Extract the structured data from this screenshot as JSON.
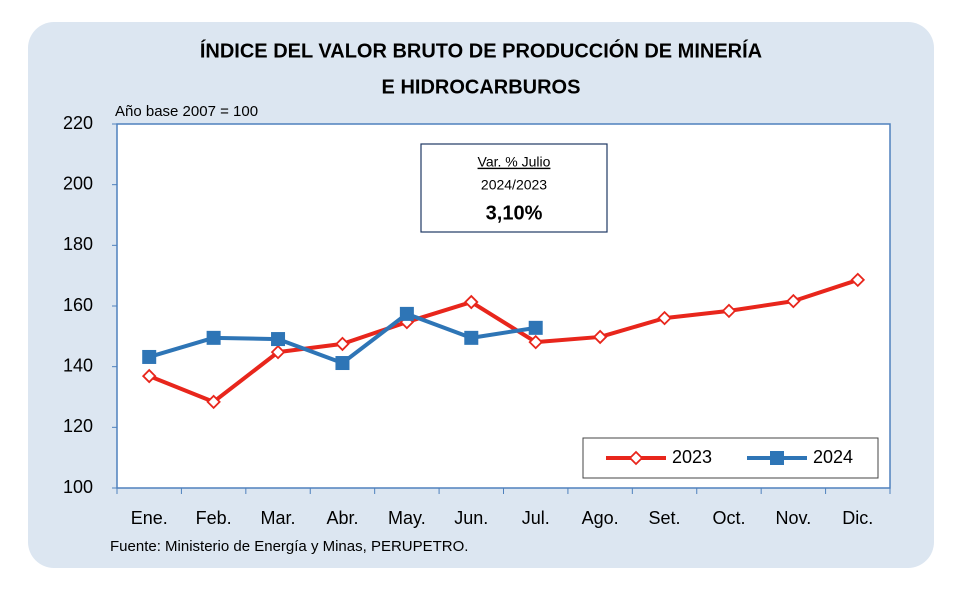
{
  "chart_data": {
    "type": "line",
    "title": [
      "ÍNDICE DEL VALOR BRUTO DE PRODUCCIÓN DE MINERÍA",
      "E HIDROCARBUROS"
    ],
    "subtitle": "Año base  2007  = 100",
    "annotation": [
      "Var. % Julio",
      "2024/2023",
      "3,10%"
    ],
    "source": "Fuente: Ministerio de Energía y Minas, PERUPETRO.",
    "categories": [
      "Ene.",
      "Feb.",
      "Mar.",
      "Abr.",
      "May.",
      "Jun.",
      "Jul.",
      "Ago.",
      "Set.",
      "Oct.",
      "Nov.",
      "Dic."
    ],
    "series": [
      {
        "name": "2023",
        "color": "#e8261c",
        "marker": "diamond",
        "values": [
          136.9,
          128.4,
          144.8,
          147.5,
          154.7,
          161.3,
          148.1,
          149.8,
          156.0,
          158.4,
          161.6,
          168.6
        ]
      },
      {
        "name": "2024",
        "color": "#2e75b6",
        "marker": "square",
        "values": [
          143.2,
          149.5,
          149.1,
          141.2,
          157.4,
          149.5,
          152.8,
          null,
          null,
          null,
          null,
          null
        ]
      }
    ],
    "ylim": [
      100,
      220
    ],
    "yticks": [
      100,
      120,
      140,
      160,
      180,
      200,
      220
    ],
    "legend": "lower right",
    "grid": false
  }
}
